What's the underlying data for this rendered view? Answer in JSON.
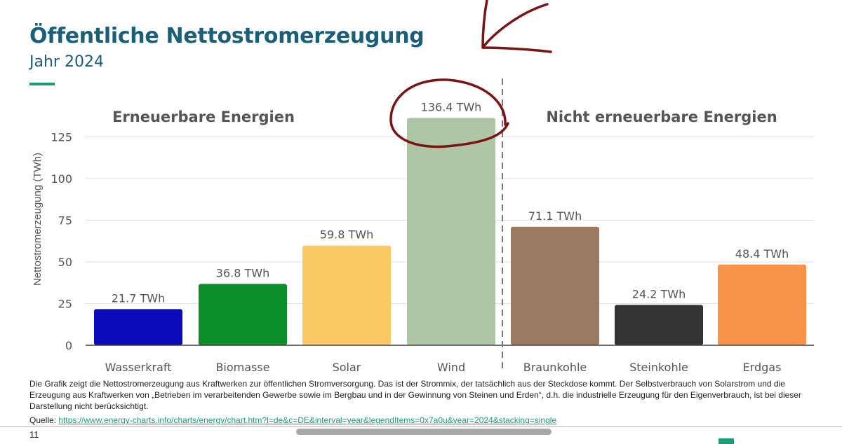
{
  "header": {
    "title": "Öffentliche Nettostromerzeugung",
    "subtitle": "Jahr 2024"
  },
  "chart_data": {
    "type": "bar",
    "title": "",
    "ylabel": "Nettostromerzeugung (TWh)",
    "xlabel": "",
    "ylim": [
      0,
      137
    ],
    "yticks": [
      0,
      25,
      50,
      75,
      100,
      125
    ],
    "grid": true,
    "groups": [
      {
        "label": "Erneuerbare Energien",
        "categories": [
          "Wasserkraft",
          "Biomasse",
          "Solar",
          "Wind"
        ]
      },
      {
        "label": "Nicht erneuerbare Energien",
        "categories": [
          "Braunkohle",
          "Steinkohle",
          "Erdgas"
        ]
      }
    ],
    "categories": [
      "Wasserkraft",
      "Biomasse",
      "Solar",
      "Wind",
      "Braunkohle",
      "Steinkohle",
      "Erdgas"
    ],
    "values": [
      21.7,
      36.8,
      59.8,
      136.4,
      71.1,
      24.2,
      48.4
    ],
    "data_labels": [
      "21.7 TWh",
      "36.8 TWh",
      "59.8 TWh",
      "136.4 TWh",
      "71.1 TWh",
      "24.2 TWh",
      "48.4 TWh"
    ],
    "colors": [
      "#0a0ab8",
      "#0c8f2a",
      "#fdc965",
      "#aec5a6",
      "#9a7b62",
      "#333333",
      "#f7944a"
    ],
    "annotation_color": "#7a1414"
  },
  "footer": {
    "note": "Die Grafik zeigt die Nettostromerzeugung aus Kraftwerken zur öffentlichen Stromversorgung. Das ist der Strommix, der tatsächlich aus der Steckdose kommt. Der Selbstverbrauch von Solarstrom und die Erzeugung aus Kraftwerken von „Betrieben im verarbeitenden Gewerbe sowie im Bergbau und in der Gewinnung von Steinen und Erden“, d.h. die industrielle Erzeugung für den Eigenverbrauch, ist bei dieser Darstellung nicht berücksichtigt.",
    "source_label": "Quelle:",
    "source_url": "https://www.energy-charts.info/charts/energy/chart.htm?l=de&c=DE&interval=year&legendItems=0x7a0u&year=2024&stacking=single",
    "page_number": "11"
  }
}
